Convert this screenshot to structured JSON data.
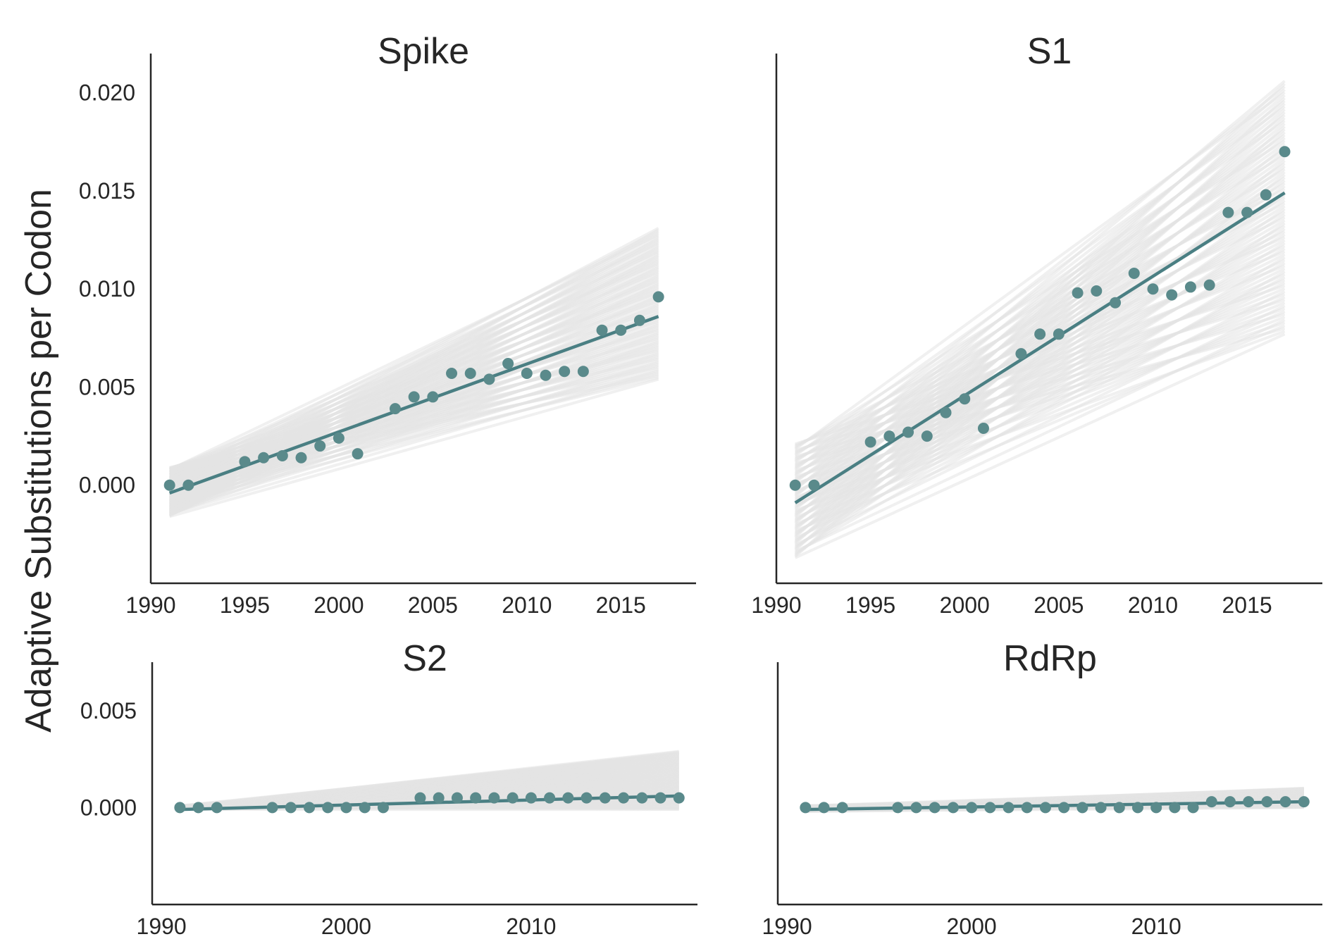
{
  "figure": {
    "ylabel": "Adaptive Substitutions per Codon",
    "colors": {
      "point": "#5a8a8b",
      "fit_line": "#4a7f83",
      "bootstrap": "#e3e3e3",
      "axis": "#262626"
    }
  },
  "chart_data": [
    {
      "type": "scatter",
      "title": "Spike",
      "xlabel": "",
      "ylabel": "Adaptive Substitutions per Codon",
      "xlim": [
        1990,
        2019
      ],
      "ylim": [
        -0.005,
        0.022
      ],
      "xticks": [
        1990,
        1995,
        2000,
        2005,
        2010,
        2015
      ],
      "yticks": [
        0.0,
        0.005,
        0.01,
        0.015,
        0.02
      ],
      "ytick_labels": [
        "0.000",
        "0.005",
        "0.010",
        "0.015",
        "0.020"
      ],
      "x": [
        1991,
        1992,
        1995,
        1996,
        1997,
        1998,
        1999,
        2000,
        2001,
        2003,
        2004,
        2005,
        2006,
        2007,
        2008,
        2009,
        2010,
        2011,
        2012,
        2013,
        2014,
        2015,
        2016,
        2017
      ],
      "y": [
        0.0,
        0.0,
        0.0012,
        0.0014,
        0.0015,
        0.0014,
        0.002,
        0.0024,
        0.0016,
        0.0039,
        0.0045,
        0.0045,
        0.0057,
        0.0057,
        0.0054,
        0.0062,
        0.0057,
        0.0056,
        0.0058,
        0.0058,
        0.0079,
        0.0079,
        0.0084,
        0.0096
      ],
      "fit": {
        "x": [
          1991,
          2017
        ],
        "y": [
          -0.0004,
          0.0086
        ]
      },
      "bootstrap_band": {
        "lower": [
          -0.0016,
          0.0054
        ],
        "upper": [
          0.0009,
          0.0131
        ]
      }
    },
    {
      "type": "scatter",
      "title": "S1",
      "xlabel": "",
      "ylabel": "",
      "xlim": [
        1990,
        2019
      ],
      "ylim": [
        -0.005,
        0.022
      ],
      "xticks": [
        1990,
        1995,
        2000,
        2005,
        2010,
        2015
      ],
      "yticks": [],
      "ytick_labels": [],
      "x": [
        1991,
        1992,
        1995,
        1996,
        1997,
        1998,
        1999,
        2000,
        2001,
        2003,
        2004,
        2005,
        2006,
        2007,
        2008,
        2009,
        2010,
        2011,
        2012,
        2013,
        2014,
        2015,
        2016,
        2017
      ],
      "y": [
        0.0,
        0.0,
        0.0022,
        0.0025,
        0.0027,
        0.0025,
        0.0037,
        0.0044,
        0.0029,
        0.0067,
        0.0077,
        0.0077,
        0.0098,
        0.0099,
        0.0093,
        0.0108,
        0.01,
        0.0097,
        0.0101,
        0.0102,
        0.0139,
        0.0139,
        0.0148,
        0.017
      ],
      "fit": {
        "x": [
          1991,
          2017
        ],
        "y": [
          -0.0009,
          0.0149
        ]
      },
      "bootstrap_band": {
        "lower": [
          -0.0037,
          0.0077
        ],
        "upper": [
          0.0021,
          0.0206
        ]
      }
    },
    {
      "type": "scatter",
      "title": "S2",
      "xlabel": "",
      "ylabel": "",
      "xlim": [
        1989.5,
        2019
      ],
      "ylim": [
        -0.005,
        0.0075
      ],
      "xticks": [
        1990,
        2000,
        2010
      ],
      "yticks": [
        0.0,
        0.005
      ],
      "ytick_labels": [
        "0.000",
        "0.005"
      ],
      "x": [
        1991,
        1992,
        1993,
        1996,
        1997,
        1998,
        1999,
        2000,
        2001,
        2002,
        2004,
        2005,
        2006,
        2007,
        2008,
        2009,
        2010,
        2011,
        2012,
        2013,
        2014,
        2015,
        2016,
        2017,
        2018
      ],
      "y": [
        0.0,
        0.0,
        0.0,
        0.0,
        0.0,
        0.0,
        0.0,
        0.0,
        0.0,
        0.0,
        0.0005,
        0.0005,
        0.0005,
        0.0005,
        0.0005,
        0.0005,
        0.0005,
        0.0005,
        0.0005,
        0.0005,
        0.0005,
        0.0005,
        0.0005,
        0.0005,
        0.0005
      ],
      "fit": {
        "x": [
          1991,
          2018
        ],
        "y": [
          -0.0001,
          0.0006
        ]
      },
      "bootstrap_band": {
        "lower": [
          -0.0001,
          -0.0001
        ],
        "upper": [
          0.0001,
          0.0029
        ]
      }
    },
    {
      "type": "scatter",
      "title": "RdRp",
      "xlabel": "",
      "ylabel": "",
      "xlim": [
        1989.5,
        2019
      ],
      "ylim": [
        -0.005,
        0.0075
      ],
      "xticks": [
        1990,
        2000,
        2010
      ],
      "yticks": [],
      "ytick_labels": [],
      "x": [
        1991,
        1992,
        1993,
        1996,
        1997,
        1998,
        1999,
        2000,
        2001,
        2002,
        2003,
        2004,
        2005,
        2006,
        2007,
        2008,
        2009,
        2010,
        2011,
        2012,
        2013,
        2014,
        2015,
        2016,
        2017,
        2018
      ],
      "y": [
        0.0,
        0.0,
        0.0,
        0.0,
        0.0,
        0.0,
        0.0,
        0.0,
        0.0,
        0.0,
        0.0,
        0.0,
        0.0,
        0.0,
        0.0,
        0.0,
        0.0,
        0.0,
        0.0,
        0.0,
        0.0003,
        0.0003,
        0.0003,
        0.0003,
        0.0003,
        0.0003
      ],
      "fit": {
        "x": [
          1991,
          2018
        ],
        "y": [
          -0.0001,
          0.0003
        ]
      },
      "bootstrap_band": {
        "lower": [
          -0.0002,
          0.0
        ],
        "upper": [
          0.0001,
          0.001
        ]
      }
    }
  ]
}
